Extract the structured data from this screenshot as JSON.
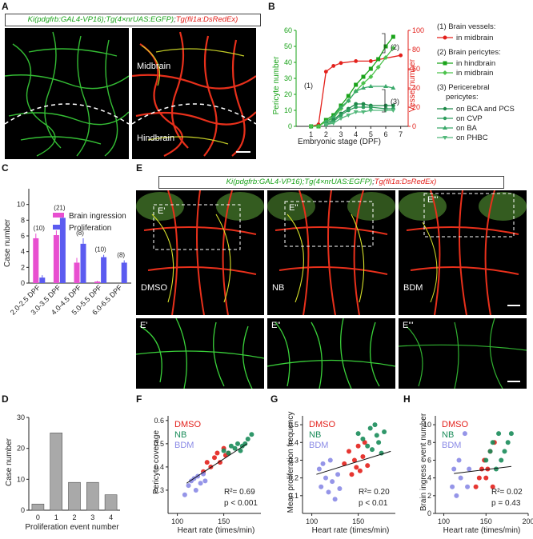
{
  "panels": {
    "A": {
      "label": "A",
      "header_green": "Ki(pdgfrb:GAL4-VP16);Tg(4×nrUAS:EGFP)",
      "header_sep": ";",
      "header_red": "Tg(fli1a:DsRedEx)",
      "midbrain": "Midbrain",
      "hindbrain": "Hindbrain"
    },
    "B": {
      "label": "B",
      "xlabel": "Embryonic stage (DPF)",
      "ylabel_left": "Pericyte number",
      "ylabel_right": "Vessel number",
      "legend": {
        "g1_title": "(1) Brain vessels:",
        "g1_items": [
          "in midbrain"
        ],
        "g2_title": "(2) Brain pericytes:",
        "g2_items": [
          "in hindbrain",
          "in midbrain"
        ],
        "g3_title_1": "(3) Pericerebral",
        "g3_title_2": "pericytes:",
        "g3_items": [
          "on BCA and PCS",
          "on CVP",
          "on BA",
          "on PHBC"
        ]
      },
      "annotations": [
        "(1)",
        "(2)",
        "(3)"
      ]
    },
    "C": {
      "label": "C",
      "ylabel": "Case number",
      "legend": [
        "Brain ingression",
        "Proliferation"
      ]
    },
    "D": {
      "label": "D",
      "ylabel": "Case number",
      "xlabel": "Proliferation event number"
    },
    "E": {
      "label": "E",
      "header_green": "Ki(pdgfrb:GAL4-VP16);Tg(4×nrUAS:EGFP)",
      "header_sep": ";",
      "header_red": "Tg(fli1a:DsRedEx)",
      "conditions": [
        "DMSO",
        "NB",
        "BDM"
      ],
      "insets": [
        "E'",
        "E''",
        "E'''"
      ]
    },
    "F": {
      "label": "F",
      "ylabel": "Pericyte coverage",
      "xlabel": "Heart rate (times/min)",
      "stats": [
        "R²= 0.69",
        "p < 0.001"
      ]
    },
    "G": {
      "label": "G",
      "ylabel": "Mean proliferation frequency",
      "xlabel": "Heart rate (times/min)",
      "stats": [
        "R²= 0.20",
        "p < 0.01"
      ]
    },
    "H": {
      "label": "H",
      "ylabel": "Brain ingress event number",
      "xlabel": "Heart rate (times/min)",
      "stats": [
        "R²= 0.02",
        "p = 0.43"
      ]
    }
  },
  "colors": {
    "green": "#1aa31a",
    "red": "#e3201b",
    "magenta": "#e84fd0",
    "blue": "#5b5bf0",
    "gray": "#a9a9a9",
    "dmso": "#e3201b",
    "nb": "#1a8c5a",
    "bdm": "#8a8ae6"
  },
  "chart_data": [
    {
      "id": "B",
      "type": "line",
      "x": [
        1,
        1.5,
        2,
        2.5,
        3,
        3.5,
        4,
        4.5,
        5,
        5.5,
        6,
        6.5,
        7
      ],
      "y_left_range": [
        0,
        60
      ],
      "y_right_range": [
        0,
        100
      ],
      "y_left_ticks": [
        0,
        10,
        20,
        30,
        40,
        50,
        60
      ],
      "y_right_ticks": [
        0,
        20,
        40,
        60,
        80,
        100
      ],
      "x_ticks": [
        1,
        2,
        3,
        4,
        5,
        6,
        7
      ],
      "series": [
        {
          "name": "in midbrain",
          "axis": "right",
          "color": "#e3201b",
          "x": [
            1,
            1.5,
            2,
            2.5,
            3,
            4,
            5,
            7
          ],
          "values": [
            0,
            2,
            57,
            63,
            66,
            68,
            68,
            74
          ]
        },
        {
          "name": "in hindbrain",
          "axis": "left",
          "color": "#1aa31a",
          "x": [
            1,
            1.5,
            2,
            2.5,
            3,
            3.5,
            4,
            4.5,
            5,
            5.5,
            6,
            6.5
          ],
          "values": [
            0,
            0,
            4,
            7,
            13,
            19,
            26,
            31,
            36,
            42,
            50,
            56
          ]
        },
        {
          "name": "in midbrain",
          "axis": "left",
          "color": "#4cc24c",
          "x": [
            1,
            1.5,
            2,
            2.5,
            3,
            3.5,
            4,
            4.5,
            5,
            5.5,
            6,
            6.5
          ],
          "values": [
            0,
            0,
            3,
            5,
            11,
            16,
            22,
            27,
            31,
            37,
            43,
            49
          ]
        },
        {
          "name": "on BCA and PCS",
          "axis": "left",
          "color": "#1e8a4a",
          "x": [
            2,
            2.5,
            3,
            3.5,
            4,
            4.5,
            5,
            6,
            6.5
          ],
          "values": [
            2,
            4,
            8,
            11,
            14,
            14,
            13,
            13,
            13
          ]
        },
        {
          "name": "on CVP",
          "axis": "left",
          "color": "#2e9e5e",
          "x": [
            2,
            2.5,
            3,
            3.5,
            4,
            4.5,
            5,
            6,
            6.5
          ],
          "values": [
            1,
            3,
            7,
            10,
            12,
            12,
            12,
            11,
            11
          ]
        },
        {
          "name": "on BA",
          "axis": "left",
          "color": "#3aa96a",
          "x": [
            2,
            2.5,
            3,
            3.5,
            4,
            4.5,
            5,
            6,
            6.5
          ],
          "values": [
            3,
            6,
            12,
            16,
            22,
            24,
            25,
            25,
            24
          ]
        },
        {
          "name": "on PHBC",
          "axis": "left",
          "color": "#52b87a",
          "x": [
            2,
            2.5,
            3,
            3.5,
            4,
            4.5,
            5,
            6,
            6.5
          ],
          "values": [
            1,
            2,
            5,
            7,
            9,
            9,
            10,
            10,
            10
          ]
        }
      ]
    },
    {
      "id": "C",
      "type": "bar",
      "categories": [
        "2.0-2.5 DPF",
        "3.0-3.5 DPF",
        "4.0-4.5 DPF",
        "5.0-5.5 DPF",
        "6.0-6.5 DPF"
      ],
      "n_labels": [
        "(10)",
        "(21)",
        "(8)",
        "(10)",
        "(8)"
      ],
      "ylim": [
        0,
        12
      ],
      "yticks": [
        0,
        2,
        4,
        6,
        8,
        10
      ],
      "series": [
        {
          "name": "Brain ingression",
          "color": "#e84fd0",
          "values": [
            5.7,
            6.1,
            2.6,
            0.2,
            0
          ],
          "err": [
            0.6,
            0.6,
            0.6,
            0.1,
            0
          ]
        },
        {
          "name": "Proliferation",
          "color": "#5b5bf0",
          "values": [
            0.7,
            8.3,
            5.0,
            3.3,
            2.6
          ],
          "err": [
            0.3,
            0.6,
            0.7,
            0.3,
            0.3
          ]
        }
      ]
    },
    {
      "id": "D",
      "type": "bar",
      "categories": [
        "0",
        "1",
        "2",
        "3",
        "4"
      ],
      "values": [
        2,
        25,
        9,
        9,
        5
      ],
      "ylim": [
        0,
        30
      ],
      "yticks": [
        0,
        10,
        20,
        30
      ]
    },
    {
      "id": "F",
      "type": "scatter",
      "xlim": [
        90,
        190
      ],
      "xticks": [
        100,
        150,
        200
      ],
      "ylim": [
        0.2,
        0.62
      ],
      "yticks": [
        0.3,
        0.4,
        0.5,
        0.6
      ],
      "fit": [
        [
          110,
          0.33
        ],
        [
          175,
          0.5
        ]
      ],
      "series": [
        {
          "name": "DMSO",
          "color": "#e3201b",
          "x": [
            128,
            132,
            136,
            140,
            143,
            146,
            150,
            152,
            155
          ],
          "y": [
            0.38,
            0.42,
            0.4,
            0.44,
            0.46,
            0.42,
            0.48,
            0.45,
            0.46
          ]
        },
        {
          "name": "NB",
          "color": "#1a8c5a",
          "x": [
            150,
            155,
            158,
            162,
            165,
            168,
            170,
            173,
            176,
            180
          ],
          "y": [
            0.47,
            0.46,
            0.49,
            0.48,
            0.5,
            0.47,
            0.49,
            0.5,
            0.52,
            0.54
          ]
        },
        {
          "name": "BDM",
          "color": "#8a8ae6",
          "x": [
            108,
            112,
            115,
            118,
            120,
            122,
            125,
            128,
            130
          ],
          "y": [
            0.28,
            0.32,
            0.34,
            0.35,
            0.3,
            0.36,
            0.33,
            0.37,
            0.34
          ]
        }
      ]
    },
    {
      "id": "G",
      "type": "scatter",
      "xlim": [
        90,
        190
      ],
      "xticks": [
        100,
        150,
        200
      ],
      "ylim": [
        0,
        0.55
      ],
      "yticks": [
        0.1,
        0.2,
        0.3,
        0.4,
        0.5
      ],
      "fit": [
        [
          105,
          0.22
        ],
        [
          185,
          0.35
        ]
      ],
      "series": [
        {
          "name": "DMSO",
          "color": "#e3201b",
          "x": [
            135,
            140,
            143,
            146,
            148,
            150,
            152,
            155,
            157,
            160
          ],
          "y": [
            0.28,
            0.35,
            0.22,
            0.3,
            0.26,
            0.38,
            0.24,
            0.32,
            0.4,
            0.27
          ]
        },
        {
          "name": "NB",
          "color": "#1a8c5a",
          "x": [
            150,
            155,
            160,
            163,
            165,
            168,
            170,
            172,
            175,
            178
          ],
          "y": [
            0.45,
            0.42,
            0.38,
            0.48,
            0.36,
            0.5,
            0.44,
            0.4,
            0.34,
            0.46
          ]
        },
        {
          "name": "BDM",
          "color": "#8a8ae6",
          "x": [
            108,
            110,
            112,
            115,
            118,
            120,
            122,
            125,
            128,
            130
          ],
          "y": [
            0.25,
            0.15,
            0.28,
            0.2,
            0.12,
            0.3,
            0.18,
            0.08,
            0.22,
            0.14
          ]
        }
      ]
    },
    {
      "id": "H",
      "type": "scatter",
      "xlim": [
        90,
        200
      ],
      "xticks": [
        100,
        150,
        200
      ],
      "ylim": [
        0,
        11
      ],
      "yticks": [
        0,
        2,
        4,
        6,
        8,
        10
      ],
      "fit": [
        [
          112,
          4.5
        ],
        [
          180,
          5.3
        ]
      ],
      "series": [
        {
          "name": "DMSO",
          "color": "#e3201b",
          "x": [
            138,
            142,
            145,
            148,
            150,
            152,
            155,
            158,
            160
          ],
          "y": [
            3,
            4,
            5,
            6,
            4,
            5,
            7,
            3,
            8
          ]
        },
        {
          "name": "NB",
          "color": "#1a8c5a",
          "x": [
            150,
            155,
            158,
            162,
            165,
            168,
            172,
            176,
            180
          ],
          "y": [
            6,
            7,
            8,
            5,
            9,
            6,
            7,
            8,
            9
          ]
        },
        {
          "name": "BDM",
          "color": "#8a8ae6",
          "x": [
            110,
            112,
            115,
            118,
            120,
            125,
            128,
            130
          ],
          "y": [
            3,
            5,
            2,
            6,
            4,
            9,
            3,
            5
          ]
        }
      ]
    }
  ]
}
